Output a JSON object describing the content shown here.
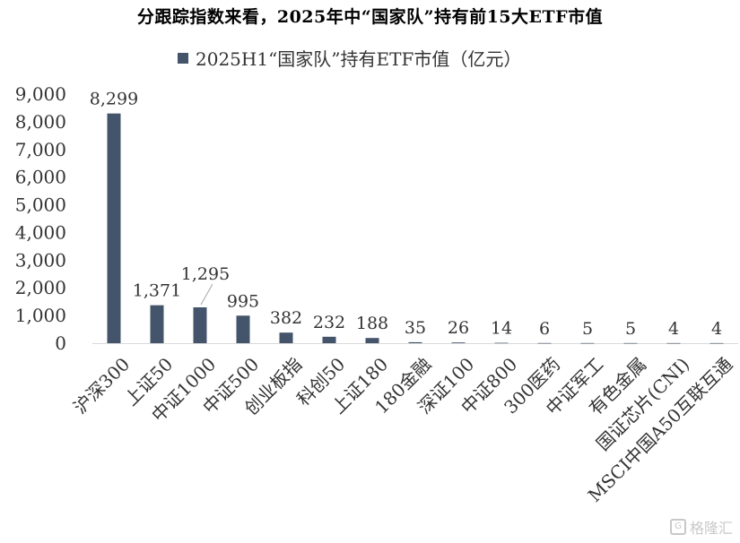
{
  "title": "分跟踪指数来看，2025年中“国家队”持有前15大ETF市值",
  "legend": {
    "label": "2025H1“国家队”持有ETF市值（亿元）"
  },
  "watermark": {
    "text": "格隆汇",
    "icon": "gelonghui-logo-icon"
  },
  "colors": {
    "bar": "#44546a",
    "axis": "#d9d9d9",
    "text": "#333333"
  },
  "chart_data": {
    "type": "bar",
    "categories": [
      "沪深300",
      "上证50",
      "中证1000",
      "中证500",
      "创业板指",
      "科创50",
      "上证180",
      "180金融",
      "深证100",
      "中证800",
      "300医药",
      "中证军工",
      "有色金属",
      "国证芯片(CNI)",
      "MSCI中国A50互联互通"
    ],
    "values": [
      8299,
      1371,
      1295,
      995,
      382,
      232,
      188,
      35,
      26,
      14,
      6,
      5,
      5,
      4,
      4
    ],
    "value_labels": [
      "8,299",
      "1,371",
      "1,295",
      "995",
      "382",
      "232",
      "188",
      "35",
      "26",
      "14",
      "6",
      "5",
      "5",
      "4",
      "4"
    ],
    "series": [
      {
        "name": "2025H1“国家队”持有ETF市值（亿元）",
        "values": [
          8299,
          1371,
          1295,
          995,
          382,
          232,
          188,
          35,
          26,
          14,
          6,
          5,
          5,
          4,
          4
        ]
      }
    ],
    "yticks": [
      "0",
      "1,000",
      "2,000",
      "3,000",
      "4,000",
      "5,000",
      "6,000",
      "7,000",
      "8,000",
      "9,000"
    ],
    "ylim": [
      0,
      9000
    ],
    "title": "分跟踪指数来看，2025年中“国家队”持有前15大ETF市值",
    "xlabel": "",
    "ylabel": "",
    "grid": false,
    "legend_position": "top"
  }
}
